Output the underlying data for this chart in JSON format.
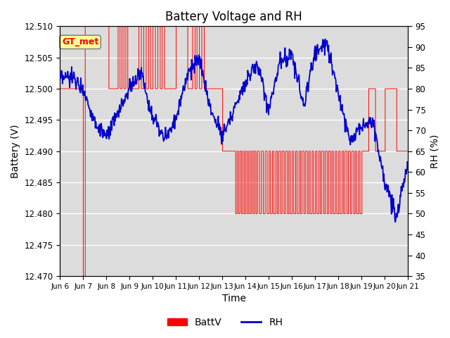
{
  "title": "Battery Voltage and RH",
  "xlabel": "Time",
  "ylabel_left": "Battery (V)",
  "ylabel_right": "RH (%)",
  "annotation": "GT_met",
  "ylim_left": [
    12.47,
    12.51
  ],
  "ylim_right": [
    35,
    95
  ],
  "yticks_left": [
    12.47,
    12.475,
    12.48,
    12.485,
    12.49,
    12.495,
    12.5,
    12.505,
    12.51
  ],
  "yticks_right": [
    35,
    40,
    45,
    50,
    55,
    60,
    65,
    70,
    75,
    80,
    85,
    90,
    95
  ],
  "xtick_labels": [
    "Jun 6",
    "Jun 7",
    "Jun 8",
    "Jun 9",
    "Jun 10",
    "Jun 11",
    "Jun 12",
    "Jun 13",
    "Jun 14",
    "Jun 15",
    "Jun 16",
    "Jun 17",
    "Jun 18",
    "Jun 19",
    "Jun 20",
    "Jun 21"
  ],
  "batt_color": "#FF0000",
  "rh_color": "#0000CD",
  "plot_bg_color": "#DCDCDC",
  "legend_batt": "BattV",
  "legend_rh": "RH",
  "annotation_facecolor": "#FFFF99",
  "annotation_edgecolor": "#888888",
  "grid_color": "#FFFFFF",
  "n_days": 15
}
